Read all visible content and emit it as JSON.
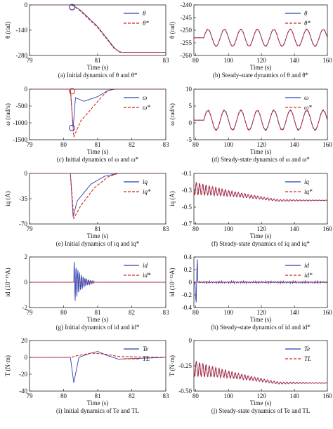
{
  "chart_data": [
    {
      "type": "line",
      "title": "",
      "caption": "(a) Initial dynamics of θ and θ*",
      "xlabel": "Time (s)",
      "ylabel": "θ (rad)",
      "xlim": [
        79,
        83
      ],
      "ylim": [
        -280,
        0
      ],
      "xticks": [
        "79",
        "81",
        "83"
      ],
      "yticks": [
        "0",
        "-140",
        "-280"
      ],
      "legend": [
        "θ",
        "θ*"
      ],
      "legend_position": "top-right",
      "series": [
        {
          "name": "θ",
          "style": "solid",
          "color": "#2f3fb0",
          "x": [
            79,
            80.2,
            80.3,
            80.5,
            81.0,
            81.5,
            81.65,
            82.0,
            83.0
          ],
          "y": [
            0,
            0,
            -5,
            -30,
            -120,
            -240,
            -262,
            -263,
            -263
          ]
        },
        {
          "name": "θ*",
          "style": "dashed",
          "color": "#d4261c",
          "x": [
            79,
            80.2,
            80.3,
            80.5,
            81.0,
            81.5,
            81.7,
            82.0,
            83.0
          ],
          "y": [
            0,
            0,
            -6,
            -35,
            -125,
            -245,
            -263,
            -263,
            -263
          ]
        }
      ],
      "markers": [
        {
          "x": 80.25,
          "y": -12,
          "color": "#d4261c"
        },
        {
          "x": 80.25,
          "y": -12,
          "color": "#2f3fb0"
        }
      ]
    },
    {
      "type": "line",
      "caption": "(b) Steady-state dynamics of θ and θ*",
      "xlabel": "Time (s)",
      "ylabel": "θ (rad)",
      "xlim": [
        79,
        160
      ],
      "ylim": [
        -260,
        -240
      ],
      "xticks": [
        "80",
        "100",
        "120",
        "140",
        "160"
      ],
      "yticks": [
        "-240",
        "-245",
        "-250",
        "-255",
        "-260"
      ],
      "legend": [
        "θ",
        "θ*"
      ],
      "legend_position": "top-right",
      "series": [
        {
          "name": "θ",
          "style": "solid",
          "color": "#2f3fb0",
          "model": "sine",
          "offset": -253,
          "amplitude": 3.2,
          "period": 10,
          "start": 85
        },
        {
          "name": "θ*",
          "style": "dashed",
          "color": "#d4261c",
          "model": "sine",
          "offset": -253,
          "amplitude": 3.4,
          "period": 10,
          "start": 85
        }
      ]
    },
    {
      "type": "line",
      "caption": "(c) Initial dynamics of ω and ω*",
      "xlabel": "Time (s)",
      "ylabel": "ω (rad/s)",
      "xlim": [
        79,
        83
      ],
      "ylim": [
        -1500,
        0
      ],
      "xticks": [
        "79",
        "80",
        "81",
        "82",
        "83"
      ],
      "yticks": [
        "0",
        "-500",
        "-1000",
        "-1500"
      ],
      "legend": [
        "ω",
        "ω*"
      ],
      "legend_position": "top-right",
      "series": [
        {
          "name": "ω",
          "style": "solid",
          "color": "#2f3fb0",
          "x": [
            79,
            80.2,
            80.28,
            80.35,
            80.6,
            81.0,
            81.3,
            81.5,
            83
          ],
          "y": [
            0,
            0,
            -1150,
            -250,
            -360,
            -220,
            -40,
            0,
            0
          ]
        },
        {
          "name": "ω*",
          "style": "dashed",
          "color": "#d4261c",
          "x": [
            79,
            80.2,
            80.3,
            80.5,
            80.8,
            81.1,
            81.3,
            81.5,
            83
          ],
          "y": [
            0,
            0,
            -1420,
            -950,
            -600,
            -250,
            -40,
            0,
            0
          ]
        }
      ],
      "markers": [
        {
          "x": 80.25,
          "y": -60,
          "color": "#d4261c"
        },
        {
          "x": 80.25,
          "y": -1150,
          "color": "#2f3fb0"
        }
      ]
    },
    {
      "type": "line",
      "caption": "(d) Steady-state dynamics of ω and ω*",
      "xlabel": "Time (s)",
      "ylabel": "ω (rad/s)",
      "xlim": [
        79,
        160
      ],
      "ylim": [
        -5,
        10
      ],
      "xticks": [
        "80",
        "100",
        "120",
        "140",
        "160"
      ],
      "yticks": [
        "10",
        "5",
        "0",
        "-5"
      ],
      "legend": [
        "ω",
        "ω*"
      ],
      "legend_position": "top-right",
      "series": [
        {
          "name": "ω",
          "style": "solid",
          "color": "#2f3fb0",
          "model": "sine",
          "offset": 0.8,
          "amplitude": 2.8,
          "period": 10,
          "start": 85
        },
        {
          "name": "ω*",
          "style": "dashed",
          "color": "#d4261c",
          "model": "sine",
          "offset": 0.8,
          "amplitude": 3.0,
          "period": 10,
          "start": 85
        }
      ]
    },
    {
      "type": "line",
      "caption": "(e) Initial dynamics of iq and iq*",
      "caption_parts": [
        "(e) Initial dynamics of ",
        "i",
        "q",
        " and ",
        "i",
        "q",
        "*"
      ],
      "xlabel": "Time (s)",
      "ylabel": "iq (A)",
      "xlim": [
        79,
        83
      ],
      "ylim": [
        -70,
        0
      ],
      "xticks": [
        "79",
        "81",
        "83"
      ],
      "yticks": [
        "0",
        "-35",
        "-70"
      ],
      "legend": [
        "iq",
        "iq*"
      ],
      "legend_position": "top-right",
      "series": [
        {
          "name": "iq",
          "style": "solid",
          "color": "#2f3fb0",
          "x": [
            79,
            80.2,
            80.28,
            80.4,
            80.8,
            81.2,
            81.6,
            83
          ],
          "y": [
            0,
            0,
            -60,
            -38,
            -15,
            -4,
            0,
            0
          ]
        },
        {
          "name": "iq*",
          "style": "dashed",
          "color": "#d4261c",
          "x": [
            79,
            80.2,
            80.3,
            80.5,
            80.9,
            81.3,
            81.6,
            83
          ],
          "y": [
            0,
            0,
            -62,
            -45,
            -20,
            -5,
            0,
            0
          ]
        }
      ]
    },
    {
      "type": "line",
      "caption": "(f) Steady-state dynamics of iq and iq*",
      "xlabel": "Time (s)",
      "ylabel": "iq (A)",
      "xlim": [
        79,
        160
      ],
      "ylim": [
        -0.7,
        -0.1
      ],
      "xticks": [
        "80",
        "100",
        "120",
        "140",
        "160"
      ],
      "yticks": [
        "-0.1",
        "-0.3",
        "-0.5",
        "-0.7"
      ],
      "legend": [
        "iq",
        "iq*"
      ],
      "legend_position": "top-right",
      "series": [
        {
          "name": "iq",
          "style": "solid",
          "color": "#2f3fb0",
          "model": "decay",
          "start": -0.28,
          "end": -0.42
        },
        {
          "name": "iq*",
          "style": "dashed",
          "color": "#d4261c",
          "model": "decay",
          "start": -0.28,
          "end": -0.42
        }
      ]
    },
    {
      "type": "line",
      "caption": "(g) Initial dynamics of id and id*",
      "xlabel": "Time (s)",
      "ylabel": "id (10⁻¹⁵A)",
      "xlim": [
        79,
        83
      ],
      "ylim": [
        -2,
        2
      ],
      "xticks": [
        "79",
        "80",
        "81",
        "82",
        "83"
      ],
      "yticks": [
        "2",
        "0",
        "-2"
      ],
      "legend": [
        "id",
        "id*"
      ],
      "legend_position": "top-right",
      "series": [
        {
          "name": "id",
          "style": "solid",
          "color": "#2f3fb0",
          "model": "burst",
          "at": 80.3,
          "amplitude": 1.8
        },
        {
          "name": "id*",
          "style": "dashed",
          "color": "#d4261c",
          "x": [
            79,
            83
          ],
          "y": [
            0,
            0
          ]
        }
      ]
    },
    {
      "type": "line",
      "caption": "(h) Steady-state dynamics of id and id*",
      "xlabel": "Time (s)",
      "ylabel": "id (10⁻¹²A)",
      "xlim": [
        79,
        160
      ],
      "ylim": [
        -0.4,
        0.4
      ],
      "xticks": [
        "80",
        "100",
        "120",
        "140",
        "160"
      ],
      "yticks": [
        "0.4",
        "0.2",
        "0",
        "-0.2",
        "-0.4"
      ],
      "legend": [
        "id",
        "id*"
      ],
      "legend_position": "top-right",
      "series": [
        {
          "name": "id",
          "style": "solid",
          "color": "#2f3fb0",
          "model": "noise",
          "amplitude": 0.02
        },
        {
          "name": "id*",
          "style": "dashed",
          "color": "#d4261c",
          "x": [
            79,
            160
          ],
          "y": [
            0,
            0
          ]
        }
      ]
    },
    {
      "type": "line",
      "caption": "(i) Initial dynamics of Te and TL",
      "xlabel": "Time (s)",
      "ylabel": "T (N·m)",
      "xlim": [
        79,
        83
      ],
      "ylim": [
        -40,
        20
      ],
      "xticks": [
        "79",
        "80",
        "81",
        "82",
        "83"
      ],
      "yticks": [
        "20",
        "0",
        "-20",
        "-40"
      ],
      "legend": [
        "Te",
        "TL"
      ],
      "legend_position": "top-right",
      "series": [
        {
          "name": "Te",
          "style": "solid",
          "color": "#2f3fb0",
          "x": [
            79,
            80.2,
            80.3,
            80.45,
            80.8,
            81.0,
            81.3,
            81.6,
            83
          ],
          "y": [
            0,
            0,
            -30,
            0,
            5,
            7,
            2,
            -2,
            0
          ]
        },
        {
          "name": "TL",
          "style": "dashed",
          "color": "#d4261c",
          "x": [
            79,
            80.2,
            80.4,
            80.8,
            81.2,
            81.6,
            83
          ],
          "y": [
            0,
            0,
            2,
            5,
            4,
            1,
            0
          ]
        }
      ]
    },
    {
      "type": "line",
      "caption": "(j) Steady-state dynamics of Te and TL",
      "xlabel": "Time (s)",
      "ylabel": "T (N·m)",
      "xlim": [
        79,
        160
      ],
      "ylim": [
        -0.5,
        0
      ],
      "xticks": [
        "80",
        "100",
        "120",
        "140",
        "160"
      ],
      "yticks": [
        "0",
        "-0.25",
        "-0.50"
      ],
      "legend": [
        "Te",
        "TL"
      ],
      "legend_position": "top-right",
      "series": [
        {
          "name": "Te",
          "style": "solid",
          "color": "#2f3fb0",
          "model": "decay",
          "start": -0.28,
          "end": -0.42
        },
        {
          "name": "TL",
          "style": "dashed",
          "color": "#d4261c",
          "model": "decay",
          "start": -0.28,
          "end": -0.42
        }
      ]
    }
  ],
  "captions": [
    "(a) Initial dynamics of θ and θ*",
    "(b) Steady-state dynamics of θ and θ*",
    "(c) Initial dynamics of ω and ω*",
    "(d) Steady-state dynamics of ω and ω*",
    "(e) Initial dynamics of iq and iq*",
    "(f) Steady-state dynamics of iq and iq*",
    "(g) Initial dynamics of id and id*",
    "(h) Steady-state dynamics of id and id*",
    "(i) Initial dynamics of Te and TL",
    "(j) Steady-state dynamics of Te and TL"
  ]
}
